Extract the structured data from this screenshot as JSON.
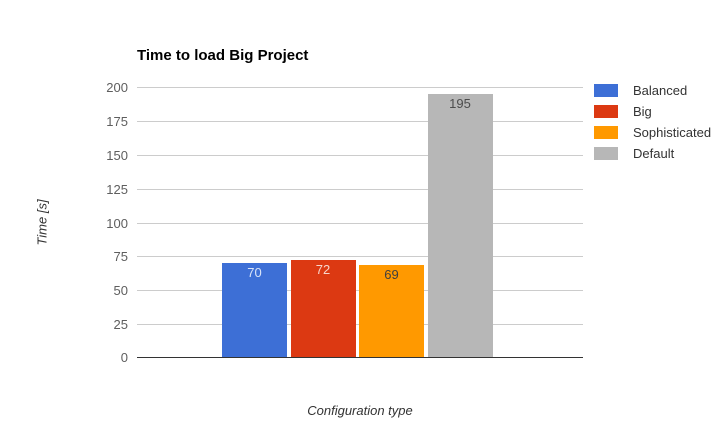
{
  "chart_data": {
    "type": "bar",
    "title": "Time to load Big Project",
    "xlabel": "Configuration type",
    "ylabel": "Time [s]",
    "ylim": [
      0,
      200
    ],
    "yticks": [
      0,
      25,
      50,
      75,
      100,
      125,
      150,
      175,
      200
    ],
    "grid": true,
    "legend_position": "right",
    "background_color": "#ffffff",
    "gridline_color": "#cccccc",
    "baseline_color": "#333333",
    "series": [
      {
        "name": "Balanced",
        "value": 70,
        "value_label": "70",
        "color": "#3d6fd6",
        "value_label_color": "#d9e4f8"
      },
      {
        "name": "Big",
        "value": 72,
        "value_label": "72",
        "color": "#dc3912",
        "value_label_color": "#f7d5cb"
      },
      {
        "name": "Sophisticated",
        "value": 69,
        "value_label": "69",
        "color": "#ff9900",
        "value_label_color": "#3f3f3f"
      },
      {
        "name": "Default",
        "value": 195,
        "value_label": "195",
        "color": "#b7b7b7",
        "value_label_color": "#4c4c4c"
      }
    ]
  }
}
